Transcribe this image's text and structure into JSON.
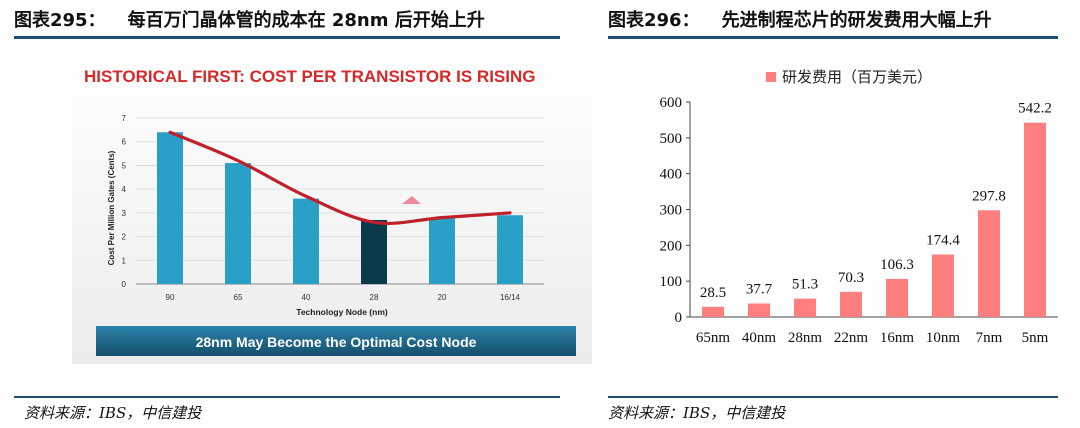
{
  "left_header": {
    "fig": "图表295：",
    "title": "每百万门晶体管的成本在 28nm 后开始上升"
  },
  "right_header": {
    "fig": "图表296：",
    "title": "先进制程芯片的研发费用大幅上升"
  },
  "left_source": "资料来源：IBS，中信建投",
  "right_source": "资料来源：IBS，中信建投",
  "chart_data": [
    {
      "type": "bar",
      "title": "HISTORICAL FIRST: COST PER TRANSISTOR IS RISING",
      "xlabel": "Technology Node (nm)",
      "ylabel": "Cost Per Million Gates (Cents)",
      "categories": [
        "90",
        "65",
        "40",
        "28",
        "20",
        "16/14"
      ],
      "values": [
        6.4,
        5.1,
        3.6,
        2.7,
        2.8,
        2.9
      ],
      "trend_line": [
        6.4,
        5.2,
        3.7,
        2.6,
        2.8,
        3.0
      ],
      "ylim": [
        0,
        7
      ],
      "yticks": [
        0,
        1,
        2,
        3,
        4,
        5,
        6,
        7
      ],
      "banner": "28nm May Become the Optimal Cost Node",
      "highlight_category": "28",
      "colors": {
        "bar": "#2aa0c8",
        "highlight": "#0b3a4d",
        "line": "#c0202a",
        "title": "#d42a2a",
        "banner": "#1c6a8e"
      }
    },
    {
      "type": "bar",
      "series": [
        {
          "name": "研发费用（百万美元）",
          "values": [
            28.5,
            37.7,
            51.3,
            70.3,
            106.3,
            174.4,
            297.8,
            542.2
          ]
        }
      ],
      "categories": [
        "65nm",
        "40nm",
        "28nm",
        "22nm",
        "16nm",
        "10nm",
        "7nm",
        "5nm"
      ],
      "data_labels": [
        "28.5",
        "37.7",
        "51.3",
        "70.3",
        "106.3",
        "174.4",
        "297.8",
        "542.2"
      ],
      "ylim": [
        0,
        600
      ],
      "yticks": [
        0,
        100,
        200,
        300,
        400,
        500,
        600
      ],
      "legend_position": "top",
      "colors": {
        "bar": "#ff7f7f"
      }
    }
  ]
}
